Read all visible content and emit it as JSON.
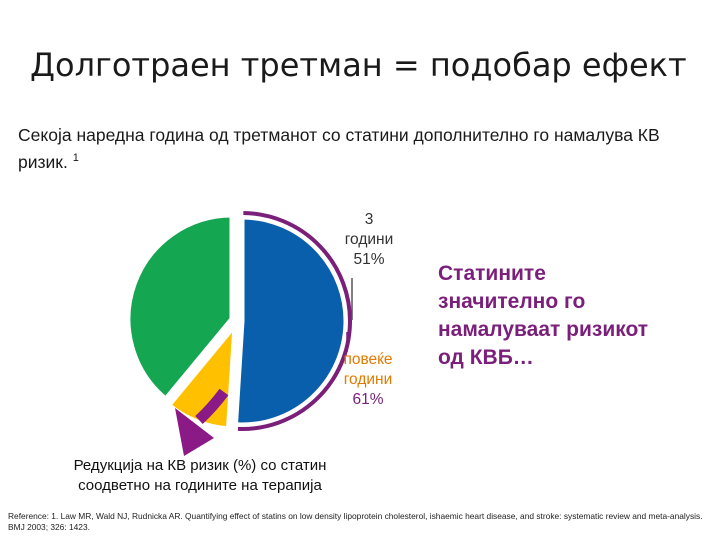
{
  "title": "Долготраен третман = подобар ефект",
  "subtitle": "Секоја наредна година од третманот со статини дополнително го намалува КВ ризик.",
  "subtitle_ref": "1",
  "chart_data": {
    "type": "pie",
    "pies": [
      {
        "name": "3 години",
        "label_line1": "3",
        "label_line2": "години",
        "value_label": "51%",
        "segments": [
          {
            "value": 51,
            "color": "#0a5fac"
          },
          {
            "value": 49,
            "color": "#ffffff"
          }
        ]
      },
      {
        "name": "повеќе години",
        "label_line1": "повеќе",
        "label_line2": "години",
        "value_label": "61%",
        "segments": [
          {
            "value": 51,
            "color": "#0a5fac"
          },
          {
            "value": 10,
            "color": "#ffc000"
          },
          {
            "value": 39,
            "color": "#14a651"
          }
        ]
      }
    ],
    "colors": {
      "reduction_3yr": "#0a5fac",
      "additional_reduction": "#ffc000",
      "remaining": "#14a651",
      "outline": "#7a1f7a",
      "arrow": "#8b1a86"
    }
  },
  "callout": "Статините значително го намалуваат ризикот од КВБ…",
  "caption_line1": "Редукција на КВ ризик (%) со статин",
  "caption_line2": "соодветно на годините на терапија",
  "reference": "Reference: 1. Law MR, Wald NJ, Rudnicka AR. Quantifying effect of statins on low density lipoprotein cholesterol, ishaemic heart disease, and stroke: systematic review and meta-analysis. BMJ 2003; 326: 1423."
}
